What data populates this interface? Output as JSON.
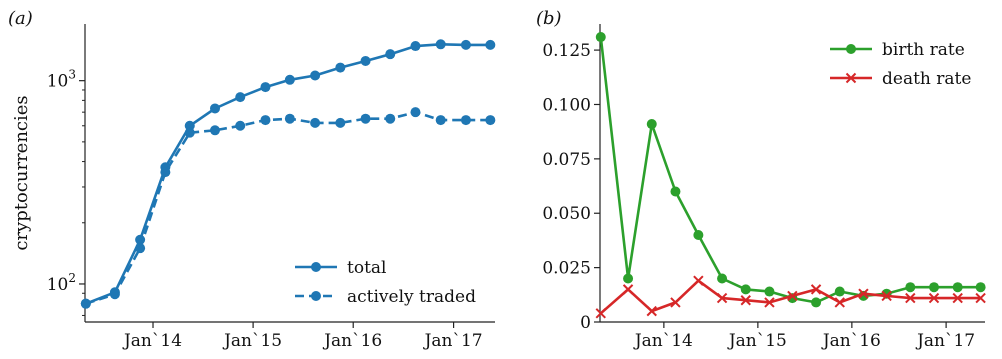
{
  "colors": {
    "total": "#1f77b4",
    "birth": "#2ca02c",
    "death": "#d62728",
    "axis": "#222222"
  },
  "chart_data": [
    {
      "panel_label": "(a)",
      "type": "line",
      "y_scale": "log",
      "ylabel": "cryptocurrencies",
      "xlabel": "",
      "xlim": [
        "2013-04-28",
        "2017-06-01"
      ],
      "ylim": [
        65,
        1900
      ],
      "y_ticks": [
        {
          "value": 100,
          "base": "10",
          "exp": "2"
        },
        {
          "value": 1000,
          "base": "10",
          "exp": "3"
        }
      ],
      "x_ticks": [
        {
          "value": "2014-01-01",
          "label": "Jan`14"
        },
        {
          "value": "2015-01-01",
          "label": "Jan`15"
        },
        {
          "value": "2016-01-01",
          "label": "Jan`16"
        },
        {
          "value": "2017-01-01",
          "label": "Jan`17"
        }
      ],
      "legend_position": "bottom-right",
      "x": [
        "2013-05-01",
        "2013-08-15",
        "2013-11-15",
        "2014-02-15",
        "2014-05-15",
        "2014-08-15",
        "2014-11-15",
        "2015-02-15",
        "2015-05-15",
        "2015-08-15",
        "2015-11-15",
        "2016-02-15",
        "2016-05-15",
        "2016-08-15",
        "2016-11-15",
        "2017-02-15",
        "2017-05-15"
      ],
      "series": [
        {
          "name": "total",
          "style": "solid",
          "marker": "circle",
          "values": [
            80,
            91,
            165,
            375,
            600,
            730,
            830,
            930,
            1010,
            1060,
            1160,
            1250,
            1350,
            1480,
            1510,
            1500,
            1500
          ]
        },
        {
          "name": "actively traded",
          "style": "dashed",
          "marker": "circle",
          "values": [
            80,
            89,
            150,
            355,
            555,
            570,
            600,
            640,
            650,
            620,
            620,
            650,
            650,
            700,
            640,
            640,
            640
          ]
        }
      ]
    },
    {
      "panel_label": "(b)",
      "type": "line",
      "y_scale": "linear",
      "ylabel": "",
      "xlabel": "",
      "xlim": [
        "2013-04-28",
        "2017-06-01"
      ],
      "ylim": [
        0,
        0.137
      ],
      "y_ticks": [
        {
          "value": 0,
          "label": "0"
        },
        {
          "value": 0.025,
          "label": "0.025"
        },
        {
          "value": 0.05,
          "label": "0.050"
        },
        {
          "value": 0.075,
          "label": "0.075"
        },
        {
          "value": 0.1,
          "label": "0.100"
        },
        {
          "value": 0.125,
          "label": "0.125"
        }
      ],
      "x_ticks": [
        {
          "value": "2014-01-01",
          "label": "Jan`14"
        },
        {
          "value": "2015-01-01",
          "label": "Jan`15"
        },
        {
          "value": "2016-01-01",
          "label": "Jan`16"
        },
        {
          "value": "2017-01-01",
          "label": "Jan`17"
        }
      ],
      "legend_position": "top-right",
      "x": [
        "2013-05-01",
        "2013-08-15",
        "2013-11-15",
        "2014-02-15",
        "2014-05-15",
        "2014-08-15",
        "2014-11-15",
        "2015-02-15",
        "2015-05-15",
        "2015-08-15",
        "2015-11-15",
        "2016-02-15",
        "2016-05-15",
        "2016-08-15",
        "2016-11-15",
        "2017-02-15",
        "2017-05-15"
      ],
      "series": [
        {
          "name": "birth rate",
          "style": "solid",
          "marker": "circle",
          "values": [
            0.131,
            0.02,
            0.091,
            0.06,
            0.04,
            0.02,
            0.015,
            0.014,
            0.011,
            0.009,
            0.014,
            0.012,
            0.013,
            0.016,
            0.016,
            0.016,
            0.016
          ]
        },
        {
          "name": "death rate",
          "style": "solid",
          "marker": "x",
          "values": [
            0.004,
            0.015,
            0.005,
            0.009,
            0.019,
            0.011,
            0.01,
            0.009,
            0.012,
            0.015,
            0.009,
            0.013,
            0.012,
            0.011,
            0.011,
            0.011,
            0.011
          ]
        }
      ]
    }
  ]
}
